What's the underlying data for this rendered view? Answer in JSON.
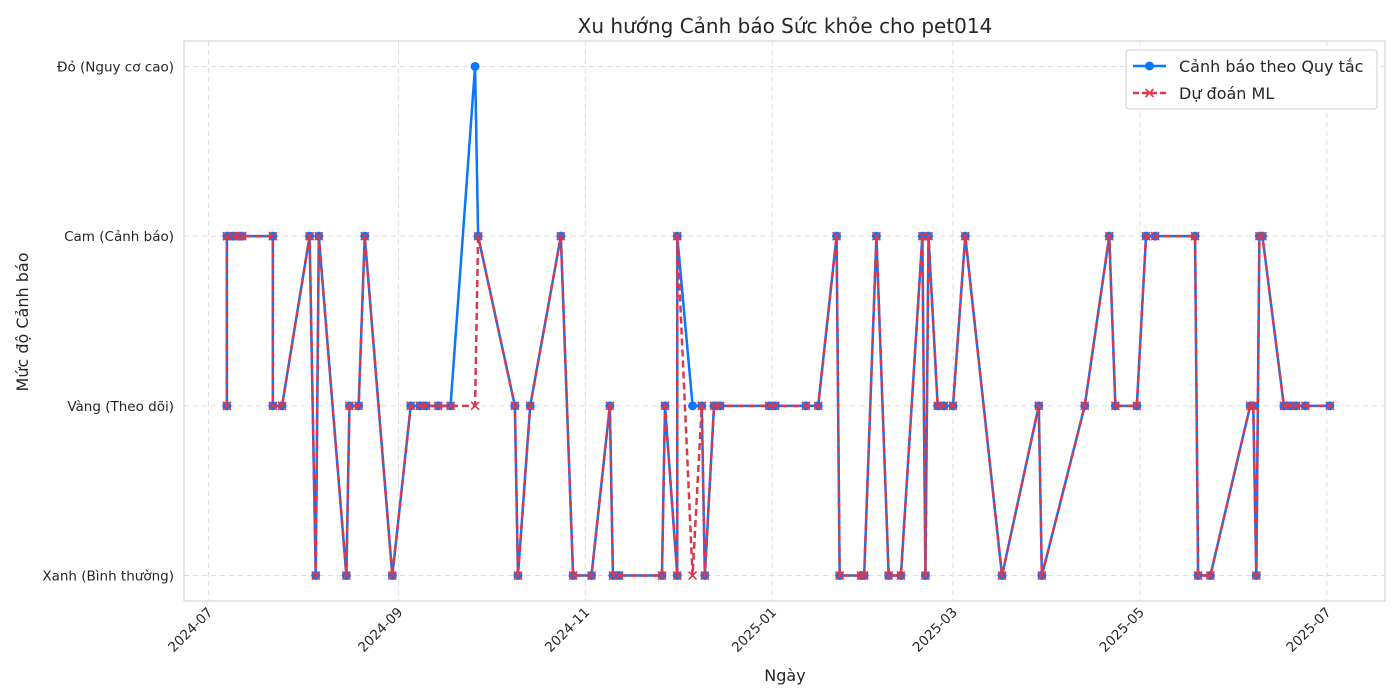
{
  "chart_data": {
    "type": "line",
    "title": "Xu hướng Cảnh báo Sức khỏe cho pet014",
    "xlabel": "Ngày",
    "ylabel": "Mức độ Cảnh báo",
    "y_tick_labels": [
      "Xanh (Bình thường)",
      "Vàng (Theo dõi)",
      "Cam (Cảnh báo)",
      "Đỏ (Nguy cơ cao)"
    ],
    "x_tick_labels": [
      "2024-07",
      "2024-09",
      "2024-11",
      "2025-01",
      "2025-03",
      "2025-05",
      "2025-07"
    ],
    "x_ticks": [
      "2024-07-01",
      "2024-09-01",
      "2024-11-01",
      "2025-01-01",
      "2025-03-01",
      "2025-05-01",
      "2025-07-01"
    ],
    "xlim": [
      "2024-06-23",
      "2025-07-20"
    ],
    "ylim": [
      -0.15,
      3.15
    ],
    "grid": true,
    "legend_position": "top-right",
    "series": [
      {
        "name": "Cảnh báo theo Quy tắc",
        "color": "#0a75ff",
        "style": "solid",
        "marker": "circle",
        "points": [
          [
            "2024-07-07",
            1
          ],
          [
            "2024-07-07",
            2
          ],
          [
            "2024-07-09",
            2
          ],
          [
            "2024-07-11",
            2
          ],
          [
            "2024-07-12",
            2
          ],
          [
            "2024-07-22",
            2
          ],
          [
            "2024-07-22",
            1
          ],
          [
            "2024-07-25",
            1
          ],
          [
            "2024-08-03",
            2
          ],
          [
            "2024-08-05",
            0
          ],
          [
            "2024-08-06",
            2
          ],
          [
            "2024-08-15",
            0
          ],
          [
            "2024-08-16",
            1
          ],
          [
            "2024-08-19",
            1
          ],
          [
            "2024-08-21",
            2
          ],
          [
            "2024-08-30",
            0
          ],
          [
            "2024-09-05",
            1
          ],
          [
            "2024-09-08",
            1
          ],
          [
            "2024-09-10",
            1
          ],
          [
            "2024-09-14",
            1
          ],
          [
            "2024-09-18",
            1
          ],
          [
            "2024-09-26",
            3
          ],
          [
            "2024-09-27",
            2
          ],
          [
            "2024-10-09",
            1
          ],
          [
            "2024-10-10",
            0
          ],
          [
            "2024-10-14",
            1
          ],
          [
            "2024-10-24",
            2
          ],
          [
            "2024-10-28",
            0
          ],
          [
            "2024-11-03",
            0
          ],
          [
            "2024-11-09",
            1
          ],
          [
            "2024-11-10",
            0
          ],
          [
            "2024-11-12",
            0
          ],
          [
            "2024-11-26",
            0
          ],
          [
            "2024-11-27",
            1
          ],
          [
            "2024-12-01",
            0
          ],
          [
            "2024-12-01",
            2
          ],
          [
            "2024-12-06",
            1
          ],
          [
            "2024-12-09",
            1
          ],
          [
            "2024-12-10",
            0
          ],
          [
            "2024-12-13",
            1
          ],
          [
            "2024-12-15",
            1
          ],
          [
            "2024-12-31",
            1
          ],
          [
            "2025-01-02",
            1
          ],
          [
            "2025-01-12",
            1
          ],
          [
            "2025-01-16",
            1
          ],
          [
            "2025-01-22",
            2
          ],
          [
            "2025-01-23",
            0
          ],
          [
            "2025-01-30",
            0
          ],
          [
            "2025-01-31",
            0
          ],
          [
            "2025-02-04",
            2
          ],
          [
            "2025-02-08",
            0
          ],
          [
            "2025-02-12",
            0
          ],
          [
            "2025-02-19",
            2
          ],
          [
            "2025-02-20",
            0
          ],
          [
            "2025-02-21",
            2
          ],
          [
            "2025-02-24",
            1
          ],
          [
            "2025-02-26",
            1
          ],
          [
            "2025-03-01",
            1
          ],
          [
            "2025-03-05",
            2
          ],
          [
            "2025-03-17",
            0
          ],
          [
            "2025-03-29",
            1
          ],
          [
            "2025-03-30",
            0
          ],
          [
            "2025-04-13",
            1
          ],
          [
            "2025-04-21",
            2
          ],
          [
            "2025-04-23",
            1
          ],
          [
            "2025-04-30",
            1
          ],
          [
            "2025-05-03",
            2
          ],
          [
            "2025-05-06",
            2
          ],
          [
            "2025-05-19",
            2
          ],
          [
            "2025-05-20",
            0
          ],
          [
            "2025-05-24",
            0
          ],
          [
            "2025-06-06",
            1
          ],
          [
            "2025-06-07",
            1
          ],
          [
            "2025-06-08",
            0
          ],
          [
            "2025-06-09",
            2
          ],
          [
            "2025-06-10",
            2
          ],
          [
            "2025-06-17",
            1
          ],
          [
            "2025-06-19",
            1
          ],
          [
            "2025-06-21",
            1
          ],
          [
            "2025-06-24",
            1
          ],
          [
            "2025-07-02",
            1
          ]
        ]
      },
      {
        "name": "Dự đoán ML",
        "color": "#d9394e",
        "style": "dashed",
        "marker": "x",
        "points": [
          [
            "2024-07-07",
            1
          ],
          [
            "2024-07-07",
            2
          ],
          [
            "2024-07-09",
            2
          ],
          [
            "2024-07-11",
            2
          ],
          [
            "2024-07-12",
            2
          ],
          [
            "2024-07-22",
            2
          ],
          [
            "2024-07-22",
            1
          ],
          [
            "2024-07-25",
            1
          ],
          [
            "2024-08-03",
            2
          ],
          [
            "2024-08-05",
            0
          ],
          [
            "2024-08-06",
            2
          ],
          [
            "2024-08-15",
            0
          ],
          [
            "2024-08-16",
            1
          ],
          [
            "2024-08-19",
            1
          ],
          [
            "2024-08-21",
            2
          ],
          [
            "2024-08-30",
            0
          ],
          [
            "2024-09-05",
            1
          ],
          [
            "2024-09-08",
            1
          ],
          [
            "2024-09-10",
            1
          ],
          [
            "2024-09-14",
            1
          ],
          [
            "2024-09-18",
            1
          ],
          [
            "2024-09-26",
            1
          ],
          [
            "2024-09-27",
            2
          ],
          [
            "2024-10-09",
            1
          ],
          [
            "2024-10-10",
            0
          ],
          [
            "2024-10-14",
            1
          ],
          [
            "2024-10-24",
            2
          ],
          [
            "2024-10-28",
            0
          ],
          [
            "2024-11-03",
            0
          ],
          [
            "2024-11-09",
            1
          ],
          [
            "2024-11-10",
            0
          ],
          [
            "2024-11-12",
            0
          ],
          [
            "2024-11-26",
            0
          ],
          [
            "2024-11-27",
            1
          ],
          [
            "2024-12-01",
            0
          ],
          [
            "2024-12-01",
            2
          ],
          [
            "2024-12-06",
            0
          ],
          [
            "2024-12-09",
            1
          ],
          [
            "2024-12-10",
            0
          ],
          [
            "2024-12-13",
            1
          ],
          [
            "2024-12-15",
            1
          ],
          [
            "2024-12-31",
            1
          ],
          [
            "2025-01-02",
            1
          ],
          [
            "2025-01-12",
            1
          ],
          [
            "2025-01-16",
            1
          ],
          [
            "2025-01-22",
            2
          ],
          [
            "2025-01-23",
            0
          ],
          [
            "2025-01-30",
            0
          ],
          [
            "2025-01-31",
            0
          ],
          [
            "2025-02-04",
            2
          ],
          [
            "2025-02-08",
            0
          ],
          [
            "2025-02-12",
            0
          ],
          [
            "2025-02-19",
            2
          ],
          [
            "2025-02-20",
            0
          ],
          [
            "2025-02-21",
            2
          ],
          [
            "2025-02-24",
            1
          ],
          [
            "2025-02-26",
            1
          ],
          [
            "2025-03-01",
            1
          ],
          [
            "2025-03-05",
            2
          ],
          [
            "2025-03-17",
            0
          ],
          [
            "2025-03-29",
            1
          ],
          [
            "2025-03-30",
            0
          ],
          [
            "2025-04-13",
            1
          ],
          [
            "2025-04-21",
            2
          ],
          [
            "2025-04-23",
            1
          ],
          [
            "2025-04-30",
            1
          ],
          [
            "2025-05-03",
            2
          ],
          [
            "2025-05-06",
            2
          ],
          [
            "2025-05-19",
            2
          ],
          [
            "2025-05-20",
            0
          ],
          [
            "2025-05-24",
            0
          ],
          [
            "2025-06-06",
            1
          ],
          [
            "2025-06-07",
            1
          ],
          [
            "2025-06-08",
            0
          ],
          [
            "2025-06-09",
            2
          ],
          [
            "2025-06-10",
            2
          ],
          [
            "2025-06-17",
            1
          ],
          [
            "2025-06-19",
            1
          ],
          [
            "2025-06-21",
            1
          ],
          [
            "2025-06-24",
            1
          ],
          [
            "2025-07-02",
            1
          ]
        ]
      }
    ]
  }
}
